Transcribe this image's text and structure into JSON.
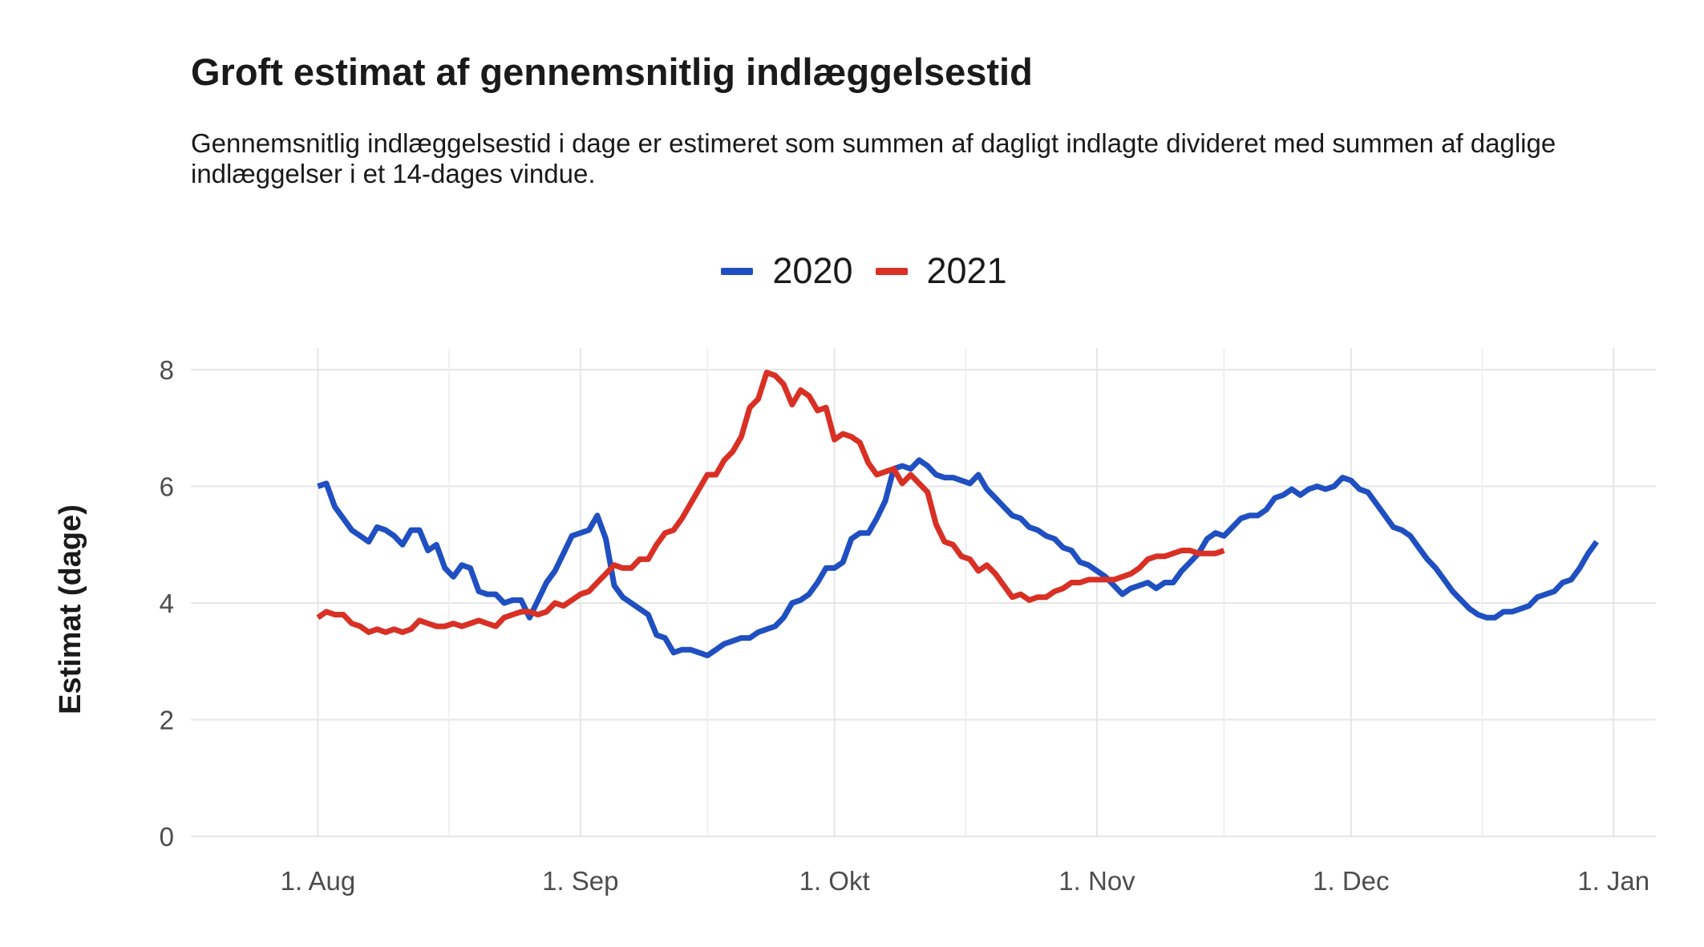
{
  "title": "Groft estimat af gennemsnitlig indlæggelsestid",
  "subtitle": "Gennemsnitlig indlæggelsestid i dage er estimeret som summen af dagligt indlagte divideret med summen af daglige indlæggelser i et 14-dages vindue.",
  "chart_data": {
    "type": "line",
    "title": "Groft estimat af gennemsnitlig indlæggelsestid",
    "ylabel": "Estimat (dage)",
    "xlabel": "",
    "ylim": [
      0,
      8.3
    ],
    "xlim": [
      "2020-07-17",
      "2021-01-06"
    ],
    "yticks": [
      0,
      2,
      4,
      6,
      8
    ],
    "xticks": [
      {
        "date": "2020-08-01",
        "label": "1. Aug"
      },
      {
        "date": "2020-09-01",
        "label": "1. Sep"
      },
      {
        "date": "2020-10-01",
        "label": "1. Okt"
      },
      {
        "date": "2020-11-01",
        "label": "1. Nov"
      },
      {
        "date": "2020-12-01",
        "label": "1. Dec"
      },
      {
        "date": "2021-01-01",
        "label": "1. Jan"
      }
    ],
    "grid": true,
    "legend_position": "top",
    "series": [
      {
        "name": "2020",
        "color": "#1f4fc1",
        "points": [
          [
            "2020-08-01",
            6.0
          ],
          [
            "2020-08-02",
            6.05
          ],
          [
            "2020-08-03",
            5.65
          ],
          [
            "2020-08-04",
            5.45
          ],
          [
            "2020-08-05",
            5.25
          ],
          [
            "2020-08-06",
            5.15
          ],
          [
            "2020-08-07",
            5.05
          ],
          [
            "2020-08-08",
            5.3
          ],
          [
            "2020-08-09",
            5.25
          ],
          [
            "2020-08-10",
            5.15
          ],
          [
            "2020-08-11",
            5.0
          ],
          [
            "2020-08-12",
            5.25
          ],
          [
            "2020-08-13",
            5.25
          ],
          [
            "2020-08-14",
            4.9
          ],
          [
            "2020-08-15",
            5.0
          ],
          [
            "2020-08-16",
            4.6
          ],
          [
            "2020-08-17",
            4.45
          ],
          [
            "2020-08-18",
            4.65
          ],
          [
            "2020-08-19",
            4.6
          ],
          [
            "2020-08-20",
            4.2
          ],
          [
            "2020-08-21",
            4.15
          ],
          [
            "2020-08-22",
            4.15
          ],
          [
            "2020-08-23",
            4.0
          ],
          [
            "2020-08-24",
            4.05
          ],
          [
            "2020-08-25",
            4.05
          ],
          [
            "2020-08-26",
            3.75
          ],
          [
            "2020-08-27",
            4.05
          ],
          [
            "2020-08-28",
            4.35
          ],
          [
            "2020-08-29",
            4.55
          ],
          [
            "2020-08-30",
            4.85
          ],
          [
            "2020-08-31",
            5.15
          ],
          [
            "2020-09-01",
            5.2
          ],
          [
            "2020-09-02",
            5.25
          ],
          [
            "2020-09-03",
            5.5
          ],
          [
            "2020-09-04",
            5.1
          ],
          [
            "2020-09-05",
            4.3
          ],
          [
            "2020-09-06",
            4.1
          ],
          [
            "2020-09-07",
            4.0
          ],
          [
            "2020-09-08",
            3.9
          ],
          [
            "2020-09-09",
            3.8
          ],
          [
            "2020-09-10",
            3.45
          ],
          [
            "2020-09-11",
            3.4
          ],
          [
            "2020-09-12",
            3.15
          ],
          [
            "2020-09-13",
            3.2
          ],
          [
            "2020-09-14",
            3.2
          ],
          [
            "2020-09-15",
            3.15
          ],
          [
            "2020-09-16",
            3.1
          ],
          [
            "2020-09-17",
            3.2
          ],
          [
            "2020-09-18",
            3.3
          ],
          [
            "2020-09-19",
            3.35
          ],
          [
            "2020-09-20",
            3.4
          ],
          [
            "2020-09-21",
            3.4
          ],
          [
            "2020-09-22",
            3.5
          ],
          [
            "2020-09-23",
            3.55
          ],
          [
            "2020-09-24",
            3.6
          ],
          [
            "2020-09-25",
            3.75
          ],
          [
            "2020-09-26",
            4.0
          ],
          [
            "2020-09-27",
            4.05
          ],
          [
            "2020-09-28",
            4.15
          ],
          [
            "2020-09-29",
            4.35
          ],
          [
            "2020-09-30",
            4.6
          ],
          [
            "2020-10-01",
            4.6
          ],
          [
            "2020-10-02",
            4.7
          ],
          [
            "2020-10-03",
            5.1
          ],
          [
            "2020-10-04",
            5.2
          ],
          [
            "2020-10-05",
            5.2
          ],
          [
            "2020-10-06",
            5.45
          ],
          [
            "2020-10-07",
            5.75
          ],
          [
            "2020-10-08",
            6.3
          ],
          [
            "2020-10-09",
            6.35
          ],
          [
            "2020-10-10",
            6.3
          ],
          [
            "2020-10-11",
            6.45
          ],
          [
            "2020-10-12",
            6.35
          ],
          [
            "2020-10-13",
            6.2
          ],
          [
            "2020-10-14",
            6.15
          ],
          [
            "2020-10-15",
            6.15
          ],
          [
            "2020-10-16",
            6.1
          ],
          [
            "2020-10-17",
            6.05
          ],
          [
            "2020-10-18",
            6.2
          ],
          [
            "2020-10-19",
            5.95
          ],
          [
            "2020-10-20",
            5.8
          ],
          [
            "2020-10-21",
            5.65
          ],
          [
            "2020-10-22",
            5.5
          ],
          [
            "2020-10-23",
            5.45
          ],
          [
            "2020-10-24",
            5.3
          ],
          [
            "2020-10-25",
            5.25
          ],
          [
            "2020-10-26",
            5.15
          ],
          [
            "2020-10-27",
            5.1
          ],
          [
            "2020-10-28",
            4.95
          ],
          [
            "2020-10-29",
            4.9
          ],
          [
            "2020-10-30",
            4.7
          ],
          [
            "2020-10-31",
            4.65
          ],
          [
            "2020-11-01",
            4.55
          ],
          [
            "2020-11-02",
            4.45
          ],
          [
            "2020-11-03",
            4.3
          ],
          [
            "2020-11-04",
            4.15
          ],
          [
            "2020-11-05",
            4.25
          ],
          [
            "2020-11-06",
            4.3
          ],
          [
            "2020-11-07",
            4.35
          ],
          [
            "2020-11-08",
            4.25
          ],
          [
            "2020-11-09",
            4.35
          ],
          [
            "2020-11-10",
            4.35
          ],
          [
            "2020-11-11",
            4.55
          ],
          [
            "2020-11-12",
            4.7
          ],
          [
            "2020-11-13",
            4.85
          ],
          [
            "2020-11-14",
            5.1
          ],
          [
            "2020-11-15",
            5.2
          ],
          [
            "2020-11-16",
            5.15
          ],
          [
            "2020-11-17",
            5.3
          ],
          [
            "2020-11-18",
            5.45
          ],
          [
            "2020-11-19",
            5.5
          ],
          [
            "2020-11-20",
            5.5
          ],
          [
            "2020-11-21",
            5.6
          ],
          [
            "2020-11-22",
            5.8
          ],
          [
            "2020-11-23",
            5.85
          ],
          [
            "2020-11-24",
            5.95
          ],
          [
            "2020-11-25",
            5.85
          ],
          [
            "2020-11-26",
            5.95
          ],
          [
            "2020-11-27",
            6.0
          ],
          [
            "2020-11-28",
            5.95
          ],
          [
            "2020-11-29",
            6.0
          ],
          [
            "2020-11-30",
            6.15
          ],
          [
            "2020-12-01",
            6.1
          ],
          [
            "2020-12-02",
            5.95
          ],
          [
            "2020-12-03",
            5.9
          ],
          [
            "2020-12-04",
            5.7
          ],
          [
            "2020-12-05",
            5.5
          ],
          [
            "2020-12-06",
            5.3
          ],
          [
            "2020-12-07",
            5.25
          ],
          [
            "2020-12-08",
            5.15
          ],
          [
            "2020-12-09",
            4.95
          ],
          [
            "2020-12-10",
            4.75
          ],
          [
            "2020-12-11",
            4.6
          ],
          [
            "2020-12-12",
            4.4
          ],
          [
            "2020-12-13",
            4.2
          ],
          [
            "2020-12-14",
            4.05
          ],
          [
            "2020-12-15",
            3.9
          ],
          [
            "2020-12-16",
            3.8
          ],
          [
            "2020-12-17",
            3.75
          ],
          [
            "2020-12-18",
            3.75
          ],
          [
            "2020-12-19",
            3.85
          ],
          [
            "2020-12-20",
            3.85
          ],
          [
            "2020-12-21",
            3.9
          ],
          [
            "2020-12-22",
            3.95
          ],
          [
            "2020-12-23",
            4.1
          ],
          [
            "2020-12-24",
            4.15
          ],
          [
            "2020-12-25",
            4.2
          ],
          [
            "2020-12-26",
            4.35
          ],
          [
            "2020-12-27",
            4.4
          ],
          [
            "2020-12-28",
            4.6
          ],
          [
            "2020-12-29",
            4.85
          ],
          [
            "2020-12-30",
            5.05
          ]
        ]
      },
      {
        "name": "2021",
        "color": "#d93025",
        "points": [
          [
            "2020-08-01",
            3.75
          ],
          [
            "2020-08-02",
            3.85
          ],
          [
            "2020-08-03",
            3.8
          ],
          [
            "2020-08-04",
            3.8
          ],
          [
            "2020-08-05",
            3.65
          ],
          [
            "2020-08-06",
            3.6
          ],
          [
            "2020-08-07",
            3.5
          ],
          [
            "2020-08-08",
            3.55
          ],
          [
            "2020-08-09",
            3.5
          ],
          [
            "2020-08-10",
            3.55
          ],
          [
            "2020-08-11",
            3.5
          ],
          [
            "2020-08-12",
            3.55
          ],
          [
            "2020-08-13",
            3.7
          ],
          [
            "2020-08-14",
            3.65
          ],
          [
            "2020-08-15",
            3.6
          ],
          [
            "2020-08-16",
            3.6
          ],
          [
            "2020-08-17",
            3.65
          ],
          [
            "2020-08-18",
            3.6
          ],
          [
            "2020-08-19",
            3.65
          ],
          [
            "2020-08-20",
            3.7
          ],
          [
            "2020-08-21",
            3.65
          ],
          [
            "2020-08-22",
            3.6
          ],
          [
            "2020-08-23",
            3.75
          ],
          [
            "2020-08-24",
            3.8
          ],
          [
            "2020-08-25",
            3.85
          ],
          [
            "2020-08-26",
            3.85
          ],
          [
            "2020-08-27",
            3.8
          ],
          [
            "2020-08-28",
            3.85
          ],
          [
            "2020-08-29",
            4.0
          ],
          [
            "2020-08-30",
            3.95
          ],
          [
            "2020-08-31",
            4.05
          ],
          [
            "2020-09-01",
            4.15
          ],
          [
            "2020-09-02",
            4.2
          ],
          [
            "2020-09-03",
            4.35
          ],
          [
            "2020-09-04",
            4.5
          ],
          [
            "2020-09-05",
            4.65
          ],
          [
            "2020-09-06",
            4.6
          ],
          [
            "2020-09-07",
            4.6
          ],
          [
            "2020-09-08",
            4.75
          ],
          [
            "2020-09-09",
            4.75
          ],
          [
            "2020-09-10",
            5.0
          ],
          [
            "2020-09-11",
            5.2
          ],
          [
            "2020-09-12",
            5.25
          ],
          [
            "2020-09-13",
            5.45
          ],
          [
            "2020-09-14",
            5.7
          ],
          [
            "2020-09-15",
            5.95
          ],
          [
            "2020-09-16",
            6.2
          ],
          [
            "2020-09-17",
            6.2
          ],
          [
            "2020-09-18",
            6.45
          ],
          [
            "2020-09-19",
            6.6
          ],
          [
            "2020-09-20",
            6.85
          ],
          [
            "2020-09-21",
            7.35
          ],
          [
            "2020-09-22",
            7.5
          ],
          [
            "2020-09-23",
            7.95
          ],
          [
            "2020-09-24",
            7.9
          ],
          [
            "2020-09-25",
            7.75
          ],
          [
            "2020-09-26",
            7.4
          ],
          [
            "2020-09-27",
            7.65
          ],
          [
            "2020-09-28",
            7.55
          ],
          [
            "2020-09-29",
            7.3
          ],
          [
            "2020-09-30",
            7.35
          ],
          [
            "2020-10-01",
            6.8
          ],
          [
            "2020-10-02",
            6.9
          ],
          [
            "2020-10-03",
            6.85
          ],
          [
            "2020-10-04",
            6.75
          ],
          [
            "2020-10-05",
            6.4
          ],
          [
            "2020-10-06",
            6.2
          ],
          [
            "2020-10-07",
            6.25
          ],
          [
            "2020-10-08",
            6.3
          ],
          [
            "2020-10-09",
            6.05
          ],
          [
            "2020-10-10",
            6.2
          ],
          [
            "2020-10-11",
            6.05
          ],
          [
            "2020-10-12",
            5.9
          ],
          [
            "2020-10-13",
            5.35
          ],
          [
            "2020-10-14",
            5.05
          ],
          [
            "2020-10-15",
            5.0
          ],
          [
            "2020-10-16",
            4.8
          ],
          [
            "2020-10-17",
            4.75
          ],
          [
            "2020-10-18",
            4.55
          ],
          [
            "2020-10-19",
            4.65
          ],
          [
            "2020-10-20",
            4.5
          ],
          [
            "2020-10-21",
            4.3
          ],
          [
            "2020-10-22",
            4.1
          ],
          [
            "2020-10-23",
            4.15
          ],
          [
            "2020-10-24",
            4.05
          ],
          [
            "2020-10-25",
            4.1
          ],
          [
            "2020-10-26",
            4.1
          ],
          [
            "2020-10-27",
            4.2
          ],
          [
            "2020-10-28",
            4.25
          ],
          [
            "2020-10-29",
            4.35
          ],
          [
            "2020-10-30",
            4.35
          ],
          [
            "2020-10-31",
            4.4
          ],
          [
            "2020-11-01",
            4.4
          ],
          [
            "2020-11-02",
            4.4
          ],
          [
            "2020-11-03",
            4.4
          ],
          [
            "2020-11-04",
            4.45
          ],
          [
            "2020-11-05",
            4.5
          ],
          [
            "2020-11-06",
            4.6
          ],
          [
            "2020-11-07",
            4.75
          ],
          [
            "2020-11-08",
            4.8
          ],
          [
            "2020-11-09",
            4.8
          ],
          [
            "2020-11-10",
            4.85
          ],
          [
            "2020-11-11",
            4.9
          ],
          [
            "2020-11-12",
            4.9
          ],
          [
            "2020-11-13",
            4.85
          ],
          [
            "2020-11-14",
            4.85
          ],
          [
            "2020-11-15",
            4.85
          ],
          [
            "2020-11-16",
            4.9
          ]
        ]
      }
    ]
  }
}
